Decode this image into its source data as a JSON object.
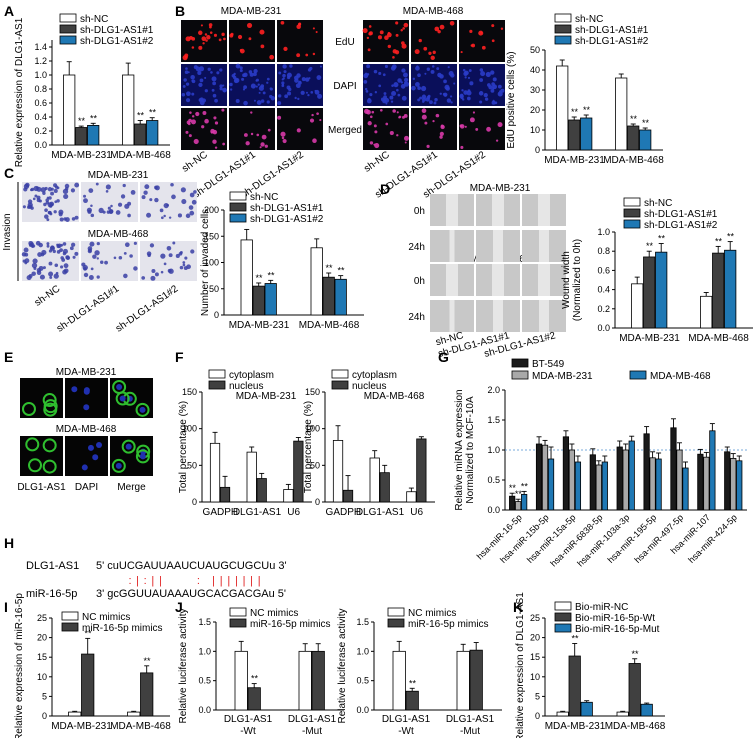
{
  "colors": {
    "sh_nc": "#ffffff",
    "sh1": "#404040",
    "sh2": "#1f78b4",
    "black": "#1a1a1a",
    "gray": "#a9a9a9",
    "blue": "#1f78b4",
    "micro_red": "#ff2020",
    "micro_blue": "#2a3cc8",
    "micro_merged": "#d83aa8",
    "transwell": "#3a3fa6",
    "wound": "#c8c8c8",
    "fluor_green": "#2fbf2f",
    "fluor_blue": "#2030b0",
    "pairing_red": "#e02020",
    "dashed_ref": "#4f90d0"
  },
  "panels": {
    "A": {
      "letter": "A"
    },
    "B": {
      "letter": "B",
      "cell_lines": [
        "MDA-MB-231",
        "MDA-MB-468"
      ],
      "rows": [
        "EdU",
        "DAPI",
        "Merged"
      ],
      "columns": [
        "sh-NC",
        "sh-DLG1-AS1#1",
        "sh-DLG1-AS1#2"
      ]
    },
    "C": {
      "letter": "C",
      "side_label": "Invasion",
      "cell_lines": [
        "MDA-MB-231",
        "MDA-MB-468"
      ],
      "columns": [
        "sh-NC",
        "sh-DLG1-AS1#1",
        "sh-DLG1-AS1#2"
      ]
    },
    "D": {
      "letter": "D",
      "cell_lines": [
        "MDA-MB-231",
        "MDA-MB-468"
      ],
      "times": [
        "0h",
        "24h",
        "0h",
        "24h"
      ],
      "columns": [
        "sh-NC",
        "sh-DLG1-AS1#1",
        "sh-DLG1-AS1#2"
      ]
    },
    "E": {
      "letter": "E",
      "cell_lines": [
        "MDA-MB-231",
        "MDA-MB-468"
      ],
      "columns": [
        "DLG1-AS1",
        "DAPI",
        "Merge"
      ]
    },
    "F": {
      "letter": "F"
    },
    "G": {
      "letter": "G"
    },
    "H": {
      "letter": "H",
      "lnc_name": "DLG1-AS1",
      "lnc_seq": "5' cuUCGAUUAAUCUAUGCUGCUu 3'",
      "mir_name": "miR-16-5p",
      "mir_seq": "3' gcGGUUAUAAAUGCACGACGAu 5'"
    },
    "I": {
      "letter": "I"
    },
    "J": {
      "letter": "J"
    },
    "K": {
      "letter": "K"
    }
  },
  "chart_data": [
    {
      "id": "A",
      "type": "bar",
      "ylabel": "Relative expression of DLG1-AS1",
      "ylim": [
        0,
        1.5
      ],
      "yticks": [
        "0.0",
        "0.2",
        "0.4",
        "0.6",
        "0.8",
        "1.0",
        "1.2",
        "1.4"
      ],
      "categories": [
        "MDA-MB-231",
        "MDA-MB-468"
      ],
      "legend": [
        "sh-NC",
        "sh-DLG1-AS1#1",
        "sh-DLG1-AS1#2"
      ],
      "series": [
        {
          "name": "sh-NC",
          "values": [
            1.0,
            1.0
          ],
          "errors": [
            0.19,
            0.17
          ]
        },
        {
          "name": "sh-DLG1-AS1#1",
          "values": [
            0.25,
            0.3
          ],
          "errors": [
            0.02,
            0.05
          ]
        },
        {
          "name": "sh-DLG1-AS1#2",
          "values": [
            0.28,
            0.35
          ],
          "errors": [
            0.03,
            0.04
          ]
        }
      ],
      "annotations": [
        "**",
        "**",
        "**",
        "**"
      ]
    },
    {
      "id": "B",
      "type": "bar",
      "ylabel": "EdU positive cells (%)",
      "ylim": [
        0,
        50
      ],
      "yticks": [
        "0",
        "10",
        "20",
        "30",
        "40",
        "50"
      ],
      "categories": [
        "MDA-MB-231",
        "MDA-MB-468"
      ],
      "legend": [
        "sh-NC",
        "sh-DLG1-AS1#1",
        "sh-DLG1-AS1#2"
      ],
      "series": [
        {
          "name": "sh-NC",
          "values": [
            42,
            36
          ],
          "errors": [
            3,
            2
          ]
        },
        {
          "name": "sh-DLG1-AS1#1",
          "values": [
            15,
            12
          ],
          "errors": [
            1.5,
            1
          ]
        },
        {
          "name": "sh-DLG1-AS1#2",
          "values": [
            16,
            10
          ],
          "errors": [
            1.5,
            1
          ]
        }
      ],
      "annotations": [
        "**",
        "**",
        "**",
        "**"
      ]
    },
    {
      "id": "C",
      "type": "bar",
      "ylabel": "Number of invaded cells",
      "ylim": [
        0,
        200
      ],
      "yticks": [
        "0",
        "50",
        "100",
        "150",
        "200"
      ],
      "categories": [
        "MDA-MB-231",
        "MDA-MB-468"
      ],
      "legend": [
        "sh-NC",
        "sh-DLG1-AS1#1",
        "sh-DLG1-AS1#2"
      ],
      "series": [
        {
          "name": "sh-NC",
          "values": [
            143,
            128
          ],
          "errors": [
            20,
            17
          ]
        },
        {
          "name": "sh-DLG1-AS1#1",
          "values": [
            55,
            72
          ],
          "errors": [
            6,
            8
          ]
        },
        {
          "name": "sh-DLG1-AS1#2",
          "values": [
            60,
            68
          ],
          "errors": [
            6,
            7
          ]
        }
      ],
      "annotations": [
        "**",
        "**",
        "**",
        "**"
      ]
    },
    {
      "id": "D",
      "type": "bar",
      "ylabel": "Wound width (Normalized to 0h)",
      "ylim": [
        0,
        1.0
      ],
      "yticks": [
        "0.0",
        "0.2",
        "0.4",
        "0.6",
        "0.8",
        "1.0"
      ],
      "categories": [
        "MDA-MB-231",
        "MDA-MB-468"
      ],
      "legend": [
        "sh-NC",
        "sh-DLG1-AS1#1",
        "sh-DLG1-AS1#2"
      ],
      "series": [
        {
          "name": "sh-NC",
          "values": [
            0.46,
            0.33
          ],
          "errors": [
            0.07,
            0.04
          ]
        },
        {
          "name": "sh-DLG1-AS1#1",
          "values": [
            0.74,
            0.78
          ],
          "errors": [
            0.06,
            0.07
          ]
        },
        {
          "name": "sh-DLG1-AS1#2",
          "values": [
            0.79,
            0.81
          ],
          "errors": [
            0.09,
            0.09
          ]
        }
      ],
      "annotations": [
        "**",
        "**",
        "**",
        "**"
      ]
    },
    {
      "id": "F1",
      "type": "bar",
      "title": "MDA-MB-231",
      "ylabel": "Total percentage (%)",
      "ylim": [
        0,
        150
      ],
      "yticks": [
        "0",
        "50",
        "100",
        "150"
      ],
      "categories": [
        "GADPH",
        "DLG1-AS1",
        "U6"
      ],
      "legend": [
        "cytoplasm",
        "nucleus"
      ],
      "series": [
        {
          "name": "cytoplasm",
          "values": [
            80,
            68,
            17
          ],
          "errors": [
            15,
            7,
            7
          ]
        },
        {
          "name": "nucleus",
          "values": [
            20,
            32,
            83
          ],
          "errors": [
            15,
            7,
            5
          ]
        }
      ]
    },
    {
      "id": "F2",
      "type": "bar",
      "title": "MDA-MB-468",
      "ylabel": "Total percentage (%)",
      "ylim": [
        0,
        150
      ],
      "yticks": [
        "0",
        "50",
        "100",
        "150"
      ],
      "categories": [
        "GADPH",
        "DLG1-AS1",
        "U6"
      ],
      "legend": [
        "cytoplasm",
        "nucleus"
      ],
      "series": [
        {
          "name": "cytoplasm",
          "values": [
            84,
            60,
            14
          ],
          "errors": [
            20,
            10,
            5
          ]
        },
        {
          "name": "nucleus",
          "values": [
            16,
            40,
            86
          ],
          "errors": [
            20,
            10,
            3
          ]
        }
      ]
    },
    {
      "id": "G",
      "type": "bar",
      "ylabel": "Relative miRNA expression Normalized to MCF-10A",
      "ylim": [
        0,
        2.0
      ],
      "yticks": [
        "0.0",
        "0.5",
        "1.0",
        "1.5",
        "2.0"
      ],
      "categories": [
        "hsa-miR-16-5p",
        "hsa-miR-15b-5p",
        "hsa-miR-15a-5p",
        "hsa-miR-6838-5p",
        "hsa-miR-103a-3p",
        "hsa-miR-195-5p",
        "hsa-miR-497-5p",
        "hsa-miR-107",
        "hsa-miR-424-5p"
      ],
      "legend": [
        "BT-549",
        "MDA-MB-231",
        "MDA-MB-468"
      ],
      "series": [
        {
          "name": "BT-549",
          "values": [
            0.23,
            1.1,
            1.22,
            0.92,
            1.05,
            1.27,
            1.37,
            0.93,
            0.97
          ],
          "errors": [
            0.05,
            0.12,
            0.1,
            0.1,
            0.1,
            0.12,
            0.15,
            0.08,
            0.08
          ]
        },
        {
          "name": "MDA-MB-231",
          "values": [
            0.14,
            1.08,
            1.0,
            0.75,
            1.0,
            0.87,
            1.0,
            0.88,
            0.86
          ],
          "errors": [
            0.04,
            0.08,
            0.1,
            0.07,
            0.1,
            0.1,
            0.12,
            0.08,
            0.08
          ]
        },
        {
          "name": "MDA-MB-468",
          "values": [
            0.26,
            0.85,
            0.8,
            0.8,
            1.15,
            0.85,
            0.7,
            1.32,
            0.82
          ],
          "errors": [
            0.05,
            0.2,
            0.1,
            0.1,
            0.08,
            0.1,
            0.1,
            0.12,
            0.08
          ]
        }
      ],
      "annotations": [
        "**",
        "**",
        "**"
      ],
      "reference_line": 1.0
    },
    {
      "id": "I",
      "type": "bar",
      "ylabel": "Relative expression of miR-16-5p",
      "ylim": [
        0,
        25
      ],
      "yticks": [
        "0",
        "5",
        "10",
        "15",
        "20",
        "25"
      ],
      "categories": [
        "MDA-MB-231",
        "MDA-MB-468"
      ],
      "legend": [
        "NC mimics",
        "miR-16-5p mimics"
      ],
      "series": [
        {
          "name": "NC mimics",
          "values": [
            1.0,
            1.0
          ],
          "errors": [
            0.2,
            0.2
          ]
        },
        {
          "name": "miR-16-5p mimics",
          "values": [
            15.8,
            11.0
          ],
          "errors": [
            4.0,
            1.8
          ]
        }
      ],
      "annotations": [
        "**",
        "**"
      ]
    },
    {
      "id": "J1",
      "type": "bar",
      "ylabel": "Relative luciferase activity",
      "ylim": [
        0,
        1.5
      ],
      "yticks": [
        "0.0",
        "0.5",
        "1.0",
        "1.5"
      ],
      "categories": [
        "DLG1-AS1 -Wt",
        "DLG1-AS1 -Mut"
      ],
      "legend": [
        "NC mimics",
        "miR-16-5p mimics"
      ],
      "series": [
        {
          "name": "NC mimics",
          "values": [
            1.0,
            1.0
          ],
          "errors": [
            0.17,
            0.13
          ]
        },
        {
          "name": "miR-16-5p mimics",
          "values": [
            0.38,
            1.0
          ],
          "errors": [
            0.07,
            0.13
          ]
        }
      ],
      "annotations": [
        "**"
      ]
    },
    {
      "id": "J2",
      "type": "bar",
      "ylabel": "Relative luciferase activity",
      "ylim": [
        0,
        1.5
      ],
      "yticks": [
        "0.0",
        "0.5",
        "1.0",
        "1.5"
      ],
      "categories": [
        "DLG1-AS1 -Wt",
        "DLG1-AS1 -Mut"
      ],
      "legend": [
        "NC mimics",
        "miR-16-5p mimics"
      ],
      "series": [
        {
          "name": "NC mimics",
          "values": [
            1.0,
            1.0
          ],
          "errors": [
            0.17,
            0.12
          ]
        },
        {
          "name": "miR-16-5p mimics",
          "values": [
            0.32,
            1.02
          ],
          "errors": [
            0.05,
            0.13
          ]
        }
      ],
      "annotations": [
        "**"
      ]
    },
    {
      "id": "K",
      "type": "bar",
      "ylabel": "Relative expression of DLG1-AS1",
      "ylim": [
        0,
        25
      ],
      "yticks": [
        "0",
        "5",
        "10",
        "15",
        "20",
        "25"
      ],
      "categories": [
        "MDA-MB-231",
        "MDA-MB-468"
      ],
      "legend": [
        "Bio-miR-NC",
        "Bio-miR-16-5p-Wt",
        "Bio-miR-16-5p-Mut"
      ],
      "series": [
        {
          "name": "Bio-miR-NC",
          "values": [
            1.0,
            1.0
          ],
          "errors": [
            0.2,
            0.2
          ]
        },
        {
          "name": "Bio-miR-16-5p-Wt",
          "values": [
            15.3,
            13.4
          ],
          "errors": [
            3.2,
            1.2
          ]
        },
        {
          "name": "Bio-miR-16-5p-Mut",
          "values": [
            3.5,
            3.0
          ],
          "errors": [
            0.4,
            0.3
          ]
        }
      ],
      "annotations": [
        "**",
        "**"
      ]
    }
  ]
}
